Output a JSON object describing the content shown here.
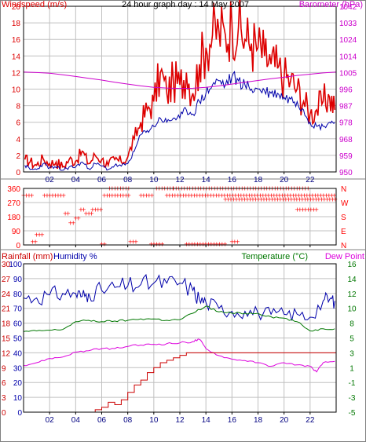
{
  "colors": {
    "gust": "#dd0000",
    "avg": "#0000aa",
    "baro": "#cc00cc",
    "dir": "#ff0000",
    "rain": "#cc0000",
    "hum": "#0000aa",
    "temp": "#007700",
    "dew": "#dd00dd",
    "grid": "#c0c0c0",
    "tickBlue": "#000080",
    "axis": "#000000",
    "frame": "#808080"
  },
  "chart_data": [
    {
      "type": "line",
      "title": "24 hour graph day : 14 May 2007",
      "ylabel": "Windspeed (m/s)",
      "y2label": "Barometer (hPa)",
      "x_ticks": [
        "02",
        "04",
        "06",
        "08",
        "10",
        "12",
        "14",
        "16",
        "18",
        "20",
        "22"
      ],
      "y_ticks": [
        "0",
        "2",
        "4",
        "6",
        "8",
        "10",
        "12",
        "14",
        "16",
        "18",
        "20"
      ],
      "y2_ticks": [
        "950",
        "959",
        "968",
        "978",
        "987",
        "996",
        "1005",
        "1014",
        "1024",
        "1033",
        "1042"
      ],
      "ylim": [
        0,
        20
      ],
      "y2lim": [
        950,
        1042
      ],
      "xlim": [
        0,
        24
      ],
      "grid": true,
      "series": [
        {
          "key": "gust",
          "x": [
            0.1,
            0.5,
            1.0,
            1.5,
            2.0,
            2.5,
            3.0,
            3.5,
            4.0,
            4.5,
            5.0,
            5.5,
            6.0,
            6.5,
            7.0,
            7.5,
            8.0,
            8.5,
            9.0,
            9.5,
            10.0,
            10.5,
            11.0,
            11.5,
            12.0,
            12.5,
            13.0,
            13.5,
            14.0,
            14.5,
            15.0,
            15.5,
            16.0,
            16.5,
            17.0,
            17.5,
            18.0,
            18.5,
            19.0,
            19.5,
            20.0,
            20.5,
            21.0,
            21.5,
            22.0,
            22.5,
            23.0,
            23.5,
            23.9
          ],
          "values": [
            1.5,
            1.2,
            0.8,
            1.6,
            1.0,
            1.2,
            0.6,
            1.5,
            1.3,
            2.5,
            1.0,
            2.0,
            1.5,
            0.8,
            1.5,
            1.2,
            1.8,
            4.0,
            6.0,
            7.5,
            8.5,
            12.0,
            9.5,
            11.0,
            10.5,
            12.0,
            9.5,
            13.0,
            15.0,
            16.5,
            17.0,
            16.5,
            18.0,
            17.5,
            16.0,
            15.5,
            15.0,
            14.0,
            13.0,
            12.5,
            11.5,
            11.0,
            10.0,
            8.5,
            7.0,
            7.5,
            8.5,
            9.0,
            7.5
          ]
        },
        {
          "key": "avg",
          "x": [
            0.1,
            0.5,
            1.0,
            1.5,
            2.0,
            2.5,
            3.0,
            3.5,
            4.0,
            4.5,
            5.0,
            5.5,
            6.0,
            6.5,
            7.0,
            7.5,
            8.0,
            8.5,
            9.0,
            9.5,
            10.0,
            10.5,
            11.0,
            11.5,
            12.0,
            12.5,
            13.0,
            13.5,
            14.0,
            14.5,
            15.0,
            15.5,
            16.0,
            16.5,
            17.0,
            17.5,
            18.0,
            18.5,
            19.0,
            19.5,
            20.0,
            20.5,
            21.0,
            21.5,
            22.0,
            22.5,
            23.0,
            23.5,
            23.9
          ],
          "values": [
            0.8,
            0.3,
            0.3,
            1.0,
            0.5,
            0.5,
            0.2,
            0.6,
            0.6,
            1.2,
            0.4,
            1.0,
            0.7,
            0.3,
            0.8,
            0.7,
            1.0,
            2.5,
            4.5,
            5.0,
            5.5,
            6.5,
            6.0,
            6.5,
            6.5,
            7.5,
            7.0,
            8.5,
            9.5,
            10.5,
            11.0,
            10.5,
            11.5,
            11.0,
            10.5,
            10.0,
            10.0,
            9.8,
            9.5,
            9.5,
            9.0,
            8.8,
            8.5,
            7.5,
            6.0,
            5.5,
            5.5,
            6.0,
            6.0
          ]
        },
        {
          "key": "baro",
          "axis": "right",
          "x": [
            0,
            1,
            2,
            3,
            4,
            5,
            6,
            7,
            8,
            9,
            10,
            11,
            12,
            13,
            14,
            15,
            16,
            17,
            18,
            19,
            20,
            21,
            22,
            23,
            24
          ],
          "values": [
            1005.5,
            1005.2,
            1004.8,
            1004.0,
            1003.0,
            1002.0,
            1001.0,
            999.8,
            998.8,
            997.8,
            997.0,
            996.6,
            996.4,
            996.5,
            997.0,
            997.8,
            998.8,
            999.8,
            1000.8,
            1001.8,
            1002.6,
            1003.6,
            1004.3,
            1005.0,
            1005.5
          ]
        }
      ]
    },
    {
      "type": "scatter",
      "ylabel": "Wind direction (degrees)",
      "y_ticks": [
        "0",
        "90",
        "180",
        "270",
        "360"
      ],
      "y2_ticks": [
        "N",
        "E",
        "S",
        "W",
        "N"
      ],
      "ylim": [
        0,
        360
      ],
      "xlim": [
        0,
        24
      ],
      "groups": [
        {
          "x0": 0.0,
          "x1": 0.7,
          "y": 315
        },
        {
          "x0": 0.7,
          "x1": 1.0,
          "y": 20
        },
        {
          "x0": 1.0,
          "x1": 1.6,
          "y": 65
        },
        {
          "x0": 1.6,
          "x1": 3.2,
          "y": 315
        },
        {
          "x0": 3.2,
          "x1": 3.6,
          "y": 200
        },
        {
          "x0": 3.6,
          "x1": 4.0,
          "y": 140
        },
        {
          "x0": 4.0,
          "x1": 4.4,
          "y": 170
        },
        {
          "x0": 4.4,
          "x1": 4.8,
          "y": 225
        },
        {
          "x0": 4.8,
          "x1": 5.3,
          "y": 200
        },
        {
          "x0": 5.3,
          "x1": 6.0,
          "y": 225
        },
        {
          "x0": 6.0,
          "x1": 6.4,
          "y": 5
        },
        {
          "x0": 6.2,
          "x1": 6.5,
          "y": 315
        },
        {
          "x0": 6.6,
          "x1": 8.2,
          "y": 360
        },
        {
          "x0": 6.6,
          "x1": 8.2,
          "y": 315
        },
        {
          "x0": 8.2,
          "x1": 8.8,
          "y": 20
        },
        {
          "x0": 9.0,
          "x1": 10.0,
          "y": 315
        },
        {
          "x0": 9.8,
          "x1": 10.8,
          "y": 5
        },
        {
          "x0": 10.2,
          "x1": 11.5,
          "y": 360
        },
        {
          "x0": 11.0,
          "x1": 24.0,
          "y": 315
        },
        {
          "x0": 11.5,
          "x1": 22.0,
          "y": 360
        },
        {
          "x0": 12.5,
          "x1": 15.5,
          "y": 5
        },
        {
          "x0": 15.5,
          "x1": 19.5,
          "y": 290
        },
        {
          "x0": 16.0,
          "x1": 16.5,
          "y": 20
        },
        {
          "x0": 19.5,
          "x1": 24.0,
          "y": 290
        },
        {
          "x0": 21.0,
          "x1": 22.5,
          "y": 225
        }
      ]
    },
    {
      "type": "line",
      "y_label_rain": "Rainfall (mm)",
      "y_label_hum": "Humidity %",
      "y2_label_temp": "Temperature (°C)",
      "y2_label_dew": "Dew Point",
      "rain_ticks": [
        "0",
        "3",
        "6",
        "9",
        "12",
        "15",
        "18",
        "21",
        "24",
        "27",
        "30"
      ],
      "hum_ticks": [
        "0",
        "10",
        "20",
        "30",
        "40",
        "50",
        "60",
        "70",
        "80",
        "90",
        "100"
      ],
      "temp_ticks": [
        "-5",
        "-3",
        "-1",
        "1",
        "3",
        "5",
        "8",
        "10",
        "12",
        "14",
        "16"
      ],
      "xlim": [
        0,
        24
      ],
      "rain_lim": [
        0,
        30
      ],
      "temp_lim": [
        -5,
        16
      ],
      "grid": true,
      "series": [
        {
          "key": "hum",
          "axis": "hum",
          "x": [
            0,
            1,
            2,
            3,
            4,
            4.5,
            5,
            6,
            7,
            8,
            9,
            10,
            11,
            12,
            13,
            13.5,
            14,
            15,
            16,
            17,
            18,
            19,
            20,
            21,
            22,
            23,
            23.5,
            23.9
          ],
          "values": [
            77,
            77,
            79,
            80,
            80,
            78,
            80,
            82,
            84,
            85,
            86,
            87,
            87,
            87,
            82,
            76,
            74,
            70,
            68,
            68,
            67,
            66,
            66,
            66,
            64,
            75,
            76,
            75
          ]
        },
        {
          "key": "temp",
          "axis": "temp",
          "x": [
            0,
            1,
            2,
            3,
            4,
            5,
            6,
            7,
            8,
            9,
            10,
            11,
            12,
            13,
            14,
            15,
            16,
            17,
            18,
            19,
            20,
            21,
            22,
            23,
            23.9
          ],
          "values": [
            6.4,
            6.5,
            6.6,
            6.7,
            7.8,
            8.0,
            7.8,
            7.9,
            8.0,
            8.2,
            8.2,
            8.0,
            8.1,
            9.0,
            10.0,
            9.2,
            9.0,
            9.0,
            9.0,
            8.5,
            8.3,
            7.8,
            6.5,
            6.8,
            6.8
          ]
        },
        {
          "key": "dew",
          "axis": "temp",
          "x": [
            0,
            1,
            2,
            3,
            4,
            5,
            6,
            7,
            8,
            9,
            10,
            11,
            12,
            13,
            13.5,
            14,
            15,
            16,
            17,
            18,
            19,
            20,
            21,
            22,
            22.5,
            23,
            23.9
          ],
          "values": [
            1.6,
            2.0,
            2.6,
            2.8,
            3.5,
            3.7,
            4.0,
            4.0,
            4.3,
            4.5,
            4.6,
            4.7,
            4.8,
            5.0,
            5.3,
            4.0,
            3.0,
            2.5,
            2.3,
            2.0,
            1.5,
            2.0,
            1.7,
            1.5,
            0.7,
            2.0,
            2.2
          ]
        },
        {
          "key": "rain",
          "axis": "rain",
          "x": [
            0,
            5,
            5.5,
            6,
            6.5,
            7,
            7.5,
            8,
            8.5,
            9,
            9.5,
            10,
            10.5,
            11,
            11.5,
            12,
            12.5,
            13,
            24
          ],
          "values": [
            0,
            0,
            0.5,
            1,
            2,
            1.5,
            2.5,
            4,
            5.5,
            6.5,
            8,
            9,
            10,
            10.5,
            11,
            11.5,
            12,
            12,
            12
          ]
        }
      ]
    }
  ]
}
